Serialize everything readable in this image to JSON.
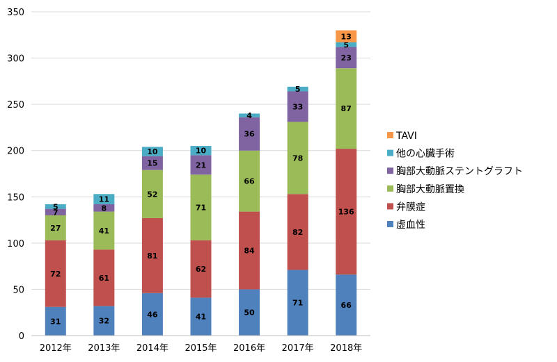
{
  "chart_data": {
    "type": "bar",
    "stacked": true,
    "categories": [
      "2012年",
      "2013年",
      "2014年",
      "2015年",
      "2016年",
      "2017年",
      "2018年"
    ],
    "series": [
      {
        "name": "虚血性",
        "color": "#4F81BD",
        "values": [
          31,
          32,
          46,
          41,
          50,
          71,
          66
        ]
      },
      {
        "name": "弁膜症",
        "color": "#C0504D",
        "values": [
          72,
          61,
          81,
          62,
          84,
          82,
          136
        ]
      },
      {
        "name": "胸部大動脈置換",
        "color": "#9BBB59",
        "values": [
          27,
          41,
          52,
          71,
          66,
          78,
          87
        ]
      },
      {
        "name": "胸部大動脈ステントグラフト",
        "color": "#8064A2",
        "values": [
          7,
          8,
          15,
          21,
          36,
          33,
          23
        ]
      },
      {
        "name": "他の心臓手術",
        "color": "#4BACC6",
        "values": [
          5,
          11,
          10,
          10,
          4,
          5,
          5
        ]
      },
      {
        "name": "TAVI",
        "color": "#F79646",
        "values": [
          0,
          0,
          0,
          0,
          0,
          0,
          13
        ]
      }
    ],
    "ylim": [
      0,
      350
    ],
    "yticks": [
      0,
      50,
      100,
      150,
      200,
      250,
      300,
      350
    ],
    "grid": true,
    "legend_position": "right",
    "title": "",
    "xlabel": "",
    "ylabel": ""
  }
}
